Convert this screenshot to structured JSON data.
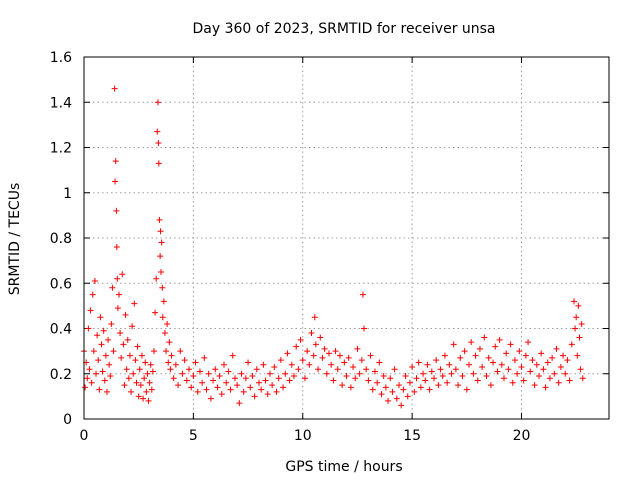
{
  "chart_data": {
    "type": "scatter",
    "title": "Day 360 of 2023, SRMTID for receiver unsa",
    "xlabel": "GPS time / hours",
    "ylabel": "SRMTID / TECUs",
    "xlim": [
      0,
      24
    ],
    "ylim": [
      0,
      1.6
    ],
    "grid": true,
    "marker": "plus",
    "marker_color": "#ff0000",
    "x_ticks": [
      0,
      5,
      10,
      15,
      20
    ],
    "x_tick_labels": [
      "0",
      "5",
      "10",
      "15",
      "20"
    ],
    "y_ticks": [
      0,
      0.2,
      0.4,
      0.6,
      0.8,
      1.0,
      1.2,
      1.4,
      1.6
    ],
    "y_tick_labels": [
      "0",
      "0.2",
      "0.4",
      "0.6",
      "0.8",
      "1",
      "1.2",
      "1.4",
      "1.6"
    ],
    "series": [
      {
        "name": "unsa",
        "points": [
          [
            0.0,
            0.3
          ],
          [
            0.05,
            0.14
          ],
          [
            0.1,
            0.25
          ],
          [
            0.15,
            0.18
          ],
          [
            0.2,
            0.4
          ],
          [
            0.25,
            0.22
          ],
          [
            0.3,
            0.48
          ],
          [
            0.35,
            0.16
          ],
          [
            0.4,
            0.55
          ],
          [
            0.45,
            0.3
          ],
          [
            0.5,
            0.61
          ],
          [
            0.55,
            0.2
          ],
          [
            0.6,
            0.37
          ],
          [
            0.65,
            0.26
          ],
          [
            0.7,
            0.13
          ],
          [
            0.75,
            0.45
          ],
          [
            0.8,
            0.33
          ],
          [
            0.85,
            0.21
          ],
          [
            0.9,
            0.39
          ],
          [
            0.95,
            0.17
          ],
          [
            1.0,
            0.28
          ],
          [
            1.05,
            0.12
          ],
          [
            1.1,
            0.35
          ],
          [
            1.15,
            0.24
          ],
          [
            1.2,
            0.19
          ],
          [
            1.25,
            0.42
          ],
          [
            1.3,
            0.58
          ],
          [
            1.35,
            0.3
          ],
          [
            1.4,
            1.46
          ],
          [
            1.42,
            1.05
          ],
          [
            1.45,
            1.14
          ],
          [
            1.48,
            0.92
          ],
          [
            1.5,
            0.76
          ],
          [
            1.52,
            0.62
          ],
          [
            1.55,
            0.49
          ],
          [
            1.6,
            0.55
          ],
          [
            1.65,
            0.38
          ],
          [
            1.7,
            0.27
          ],
          [
            1.75,
            0.64
          ],
          [
            1.8,
            0.33
          ],
          [
            1.85,
            0.15
          ],
          [
            1.9,
            0.46
          ],
          [
            1.95,
            0.22
          ],
          [
            2.0,
            0.35
          ],
          [
            2.05,
            0.18
          ],
          [
            2.1,
            0.28
          ],
          [
            2.15,
            0.12
          ],
          [
            2.2,
            0.41
          ],
          [
            2.25,
            0.2
          ],
          [
            2.3,
            0.51
          ],
          [
            2.35,
            0.26
          ],
          [
            2.4,
            0.16
          ],
          [
            2.45,
            0.32
          ],
          [
            2.5,
            0.1
          ],
          [
            2.55,
            0.22
          ],
          [
            2.6,
            0.15
          ],
          [
            2.65,
            0.28
          ],
          [
            2.7,
            0.09
          ],
          [
            2.75,
            0.18
          ],
          [
            2.8,
            0.25
          ],
          [
            2.85,
            0.12
          ],
          [
            2.9,
            0.2
          ],
          [
            2.95,
            0.08
          ],
          [
            3.0,
            0.16
          ],
          [
            3.05,
            0.24
          ],
          [
            3.1,
            0.13
          ],
          [
            3.15,
            0.21
          ],
          [
            3.2,
            0.3
          ],
          [
            3.25,
            0.47
          ],
          [
            3.3,
            0.62
          ],
          [
            3.35,
            1.27
          ],
          [
            3.38,
            1.4
          ],
          [
            3.4,
            1.22
          ],
          [
            3.42,
            1.13
          ],
          [
            3.45,
            0.88
          ],
          [
            3.48,
            0.72
          ],
          [
            3.5,
            0.83
          ],
          [
            3.52,
            0.65
          ],
          [
            3.55,
            0.78
          ],
          [
            3.58,
            0.58
          ],
          [
            3.6,
            0.45
          ],
          [
            3.65,
            0.52
          ],
          [
            3.7,
            0.38
          ],
          [
            3.75,
            0.3
          ],
          [
            3.8,
            0.42
          ],
          [
            3.85,
            0.25
          ],
          [
            3.9,
            0.34
          ],
          [
            3.95,
            0.22
          ],
          [
            4.0,
            0.28
          ],
          [
            4.1,
            0.18
          ],
          [
            4.2,
            0.24
          ],
          [
            4.3,
            0.15
          ],
          [
            4.4,
            0.3
          ],
          [
            4.5,
            0.2
          ],
          [
            4.6,
            0.26
          ],
          [
            4.7,
            0.17
          ],
          [
            4.8,
            0.22
          ],
          [
            4.9,
            0.14
          ],
          [
            5.0,
            0.19
          ],
          [
            5.1,
            0.25
          ],
          [
            5.2,
            0.12
          ],
          [
            5.3,
            0.21
          ],
          [
            5.4,
            0.16
          ],
          [
            5.5,
            0.27
          ],
          [
            5.6,
            0.13
          ],
          [
            5.7,
            0.2
          ],
          [
            5.8,
            0.09
          ],
          [
            5.9,
            0.17
          ],
          [
            6.0,
            0.22
          ],
          [
            6.1,
            0.14
          ],
          [
            6.2,
            0.19
          ],
          [
            6.3,
            0.11
          ],
          [
            6.4,
            0.24
          ],
          [
            6.5,
            0.16
          ],
          [
            6.6,
            0.21
          ],
          [
            6.7,
            0.13
          ],
          [
            6.8,
            0.28
          ],
          [
            6.9,
            0.18
          ],
          [
            7.0,
            0.15
          ],
          [
            7.1,
            0.07
          ],
          [
            7.2,
            0.2
          ],
          [
            7.3,
            0.12
          ],
          [
            7.4,
            0.18
          ],
          [
            7.5,
            0.25
          ],
          [
            7.6,
            0.14
          ],
          [
            7.7,
            0.19
          ],
          [
            7.8,
            0.1
          ],
          [
            7.9,
            0.22
          ],
          [
            8.0,
            0.16
          ],
          [
            8.1,
            0.13
          ],
          [
            8.2,
            0.24
          ],
          [
            8.3,
            0.17
          ],
          [
            8.4,
            0.11
          ],
          [
            8.5,
            0.2
          ],
          [
            8.6,
            0.15
          ],
          [
            8.7,
            0.23
          ],
          [
            8.8,
            0.12
          ],
          [
            8.9,
            0.18
          ],
          [
            9.0,
            0.26
          ],
          [
            9.1,
            0.14
          ],
          [
            9.2,
            0.2
          ],
          [
            9.3,
            0.29
          ],
          [
            9.4,
            0.17
          ],
          [
            9.5,
            0.24
          ],
          [
            9.6,
            0.19
          ],
          [
            9.7,
            0.32
          ],
          [
            9.8,
            0.22
          ],
          [
            9.9,
            0.35
          ],
          [
            10.0,
            0.26
          ],
          [
            10.1,
            0.18
          ],
          [
            10.2,
            0.3
          ],
          [
            10.3,
            0.24
          ],
          [
            10.4,
            0.38
          ],
          [
            10.5,
            0.28
          ],
          [
            10.55,
            0.45
          ],
          [
            10.6,
            0.33
          ],
          [
            10.7,
            0.22
          ],
          [
            10.8,
            0.36
          ],
          [
            10.9,
            0.27
          ],
          [
            11.0,
            0.31
          ],
          [
            11.1,
            0.2
          ],
          [
            11.2,
            0.29
          ],
          [
            11.3,
            0.24
          ],
          [
            11.4,
            0.17
          ],
          [
            11.5,
            0.3
          ],
          [
            11.6,
            0.22
          ],
          [
            11.7,
            0.28
          ],
          [
            11.8,
            0.15
          ],
          [
            11.9,
            0.25
          ],
          [
            12.0,
            0.19
          ],
          [
            12.1,
            0.27
          ],
          [
            12.2,
            0.14
          ],
          [
            12.3,
            0.23
          ],
          [
            12.4,
            0.18
          ],
          [
            12.5,
            0.31
          ],
          [
            12.6,
            0.2
          ],
          [
            12.7,
            0.26
          ],
          [
            12.75,
            0.55
          ],
          [
            12.8,
            0.4
          ],
          [
            12.9,
            0.22
          ],
          [
            13.0,
            0.17
          ],
          [
            13.1,
            0.28
          ],
          [
            13.2,
            0.13
          ],
          [
            13.3,
            0.21
          ],
          [
            13.4,
            0.16
          ],
          [
            13.5,
            0.25
          ],
          [
            13.6,
            0.11
          ],
          [
            13.7,
            0.19
          ],
          [
            13.8,
            0.14
          ],
          [
            13.9,
            0.08
          ],
          [
            14.0,
            0.18
          ],
          [
            14.1,
            0.12
          ],
          [
            14.2,
            0.22
          ],
          [
            14.3,
            0.09
          ],
          [
            14.4,
            0.15
          ],
          [
            14.5,
            0.06
          ],
          [
            14.6,
            0.13
          ],
          [
            14.7,
            0.19
          ],
          [
            14.8,
            0.1
          ],
          [
            14.9,
            0.16
          ],
          [
            15.0,
            0.23
          ],
          [
            15.1,
            0.12
          ],
          [
            15.2,
            0.18
          ],
          [
            15.3,
            0.25
          ],
          [
            15.4,
            0.14
          ],
          [
            15.5,
            0.2
          ],
          [
            15.6,
            0.17
          ],
          [
            15.7,
            0.24
          ],
          [
            15.8,
            0.13
          ],
          [
            15.9,
            0.21
          ],
          [
            16.0,
            0.18
          ],
          [
            16.1,
            0.26
          ],
          [
            16.2,
            0.15
          ],
          [
            16.3,
            0.22
          ],
          [
            16.4,
            0.19
          ],
          [
            16.5,
            0.28
          ],
          [
            16.6,
            0.16
          ],
          [
            16.7,
            0.24
          ],
          [
            16.8,
            0.2
          ],
          [
            16.9,
            0.33
          ],
          [
            17.0,
            0.22
          ],
          [
            17.1,
            0.15
          ],
          [
            17.2,
            0.27
          ],
          [
            17.3,
            0.19
          ],
          [
            17.4,
            0.3
          ],
          [
            17.5,
            0.13
          ],
          [
            17.6,
            0.24
          ],
          [
            17.7,
            0.34
          ],
          [
            17.8,
            0.2
          ],
          [
            17.9,
            0.28
          ],
          [
            18.0,
            0.17
          ],
          [
            18.1,
            0.31
          ],
          [
            18.2,
            0.23
          ],
          [
            18.3,
            0.36
          ],
          [
            18.4,
            0.19
          ],
          [
            18.5,
            0.27
          ],
          [
            18.6,
            0.15
          ],
          [
            18.7,
            0.25
          ],
          [
            18.8,
            0.32
          ],
          [
            18.9,
            0.21
          ],
          [
            19.0,
            0.35
          ],
          [
            19.1,
            0.24
          ],
          [
            19.2,
            0.18
          ],
          [
            19.3,
            0.29
          ],
          [
            19.4,
            0.22
          ],
          [
            19.5,
            0.33
          ],
          [
            19.6,
            0.16
          ],
          [
            19.7,
            0.26
          ],
          [
            19.8,
            0.2
          ],
          [
            19.9,
            0.3
          ],
          [
            20.0,
            0.23
          ],
          [
            20.1,
            0.17
          ],
          [
            20.2,
            0.28
          ],
          [
            20.3,
            0.34
          ],
          [
            20.4,
            0.21
          ],
          [
            20.5,
            0.26
          ],
          [
            20.6,
            0.15
          ],
          [
            20.7,
            0.24
          ],
          [
            20.8,
            0.19
          ],
          [
            20.9,
            0.29
          ],
          [
            21.0,
            0.22
          ],
          [
            21.1,
            0.14
          ],
          [
            21.2,
            0.25
          ],
          [
            21.3,
            0.18
          ],
          [
            21.4,
            0.27
          ],
          [
            21.5,
            0.2
          ],
          [
            21.6,
            0.31
          ],
          [
            21.7,
            0.16
          ],
          [
            21.8,
            0.23
          ],
          [
            21.9,
            0.28
          ],
          [
            22.0,
            0.2
          ],
          [
            22.1,
            0.26
          ],
          [
            22.2,
            0.17
          ],
          [
            22.3,
            0.33
          ],
          [
            22.4,
            0.52
          ],
          [
            22.45,
            0.4
          ],
          [
            22.5,
            0.45
          ],
          [
            22.55,
            0.28
          ],
          [
            22.6,
            0.5
          ],
          [
            22.65,
            0.36
          ],
          [
            22.7,
            0.22
          ],
          [
            22.75,
            0.42
          ],
          [
            22.8,
            0.18
          ]
        ]
      }
    ]
  }
}
